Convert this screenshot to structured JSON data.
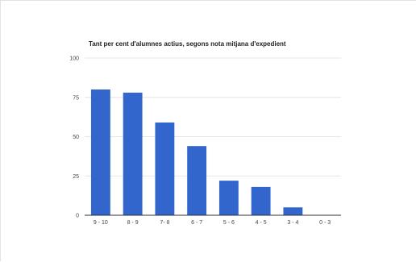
{
  "chart_data": {
    "type": "bar",
    "title": "Tant per cent d'alumnes actius, segons nota mitjana d'expedient",
    "xlabel": "",
    "ylabel": "",
    "categories": [
      "9 - 10",
      "8 - 9",
      "7- 8",
      "6 - 7",
      "5 - 6",
      "4 - 5",
      "3 - 4",
      "0 - 3"
    ],
    "values": [
      80,
      78,
      59,
      44,
      22,
      18,
      5,
      0
    ],
    "ylim": [
      0,
      100
    ],
    "yticks": [
      "0",
      "25",
      "50",
      "75",
      "100"
    ],
    "grid": true,
    "legend": "none",
    "bar_color": "#3366cc",
    "grid_color": "#e6e6e6",
    "axis_color": "#333333"
  }
}
